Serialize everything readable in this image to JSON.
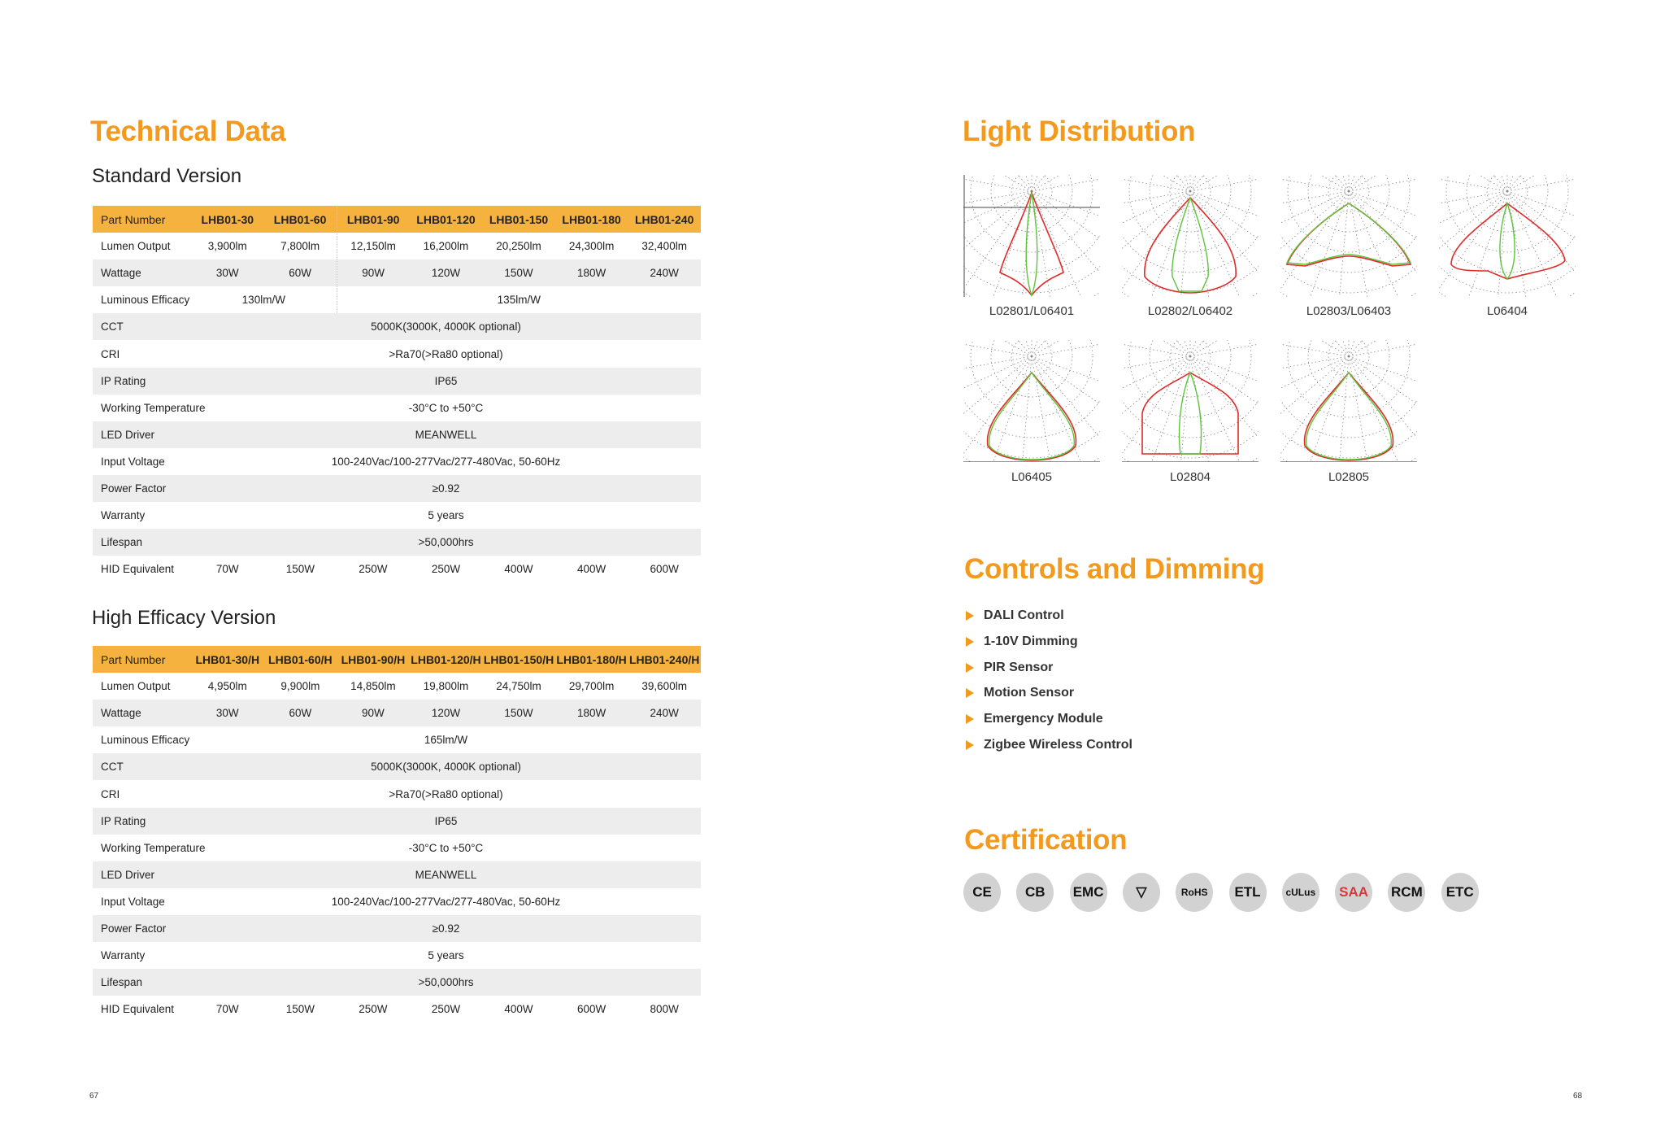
{
  "left": {
    "title": "Technical Data",
    "standard": {
      "subtitle": "Standard Version",
      "rows": [
        {
          "label": "Part Number",
          "cells": [
            {
              "v": "LHB01-30"
            },
            {
              "v": "LHB01-60"
            },
            {
              "v": "LHB01-90"
            },
            {
              "v": "LHB01-120"
            },
            {
              "v": "LHB01-150"
            },
            {
              "v": "LHB01-180"
            },
            {
              "v": "LHB01-240"
            }
          ]
        },
        {
          "label": "Lumen Output",
          "cells": [
            {
              "v": "3,900lm"
            },
            {
              "v": "7,800lm"
            },
            {
              "v": "12,150lm"
            },
            {
              "v": "16,200lm"
            },
            {
              "v": "20,250lm"
            },
            {
              "v": "24,300lm"
            },
            {
              "v": "32,400lm"
            }
          ]
        },
        {
          "label": "Wattage",
          "cells": [
            {
              "v": "30W"
            },
            {
              "v": "60W"
            },
            {
              "v": "90W"
            },
            {
              "v": "120W"
            },
            {
              "v": "150W"
            },
            {
              "v": "180W"
            },
            {
              "v": "240W"
            }
          ]
        },
        {
          "label": "Luminous Efficacy",
          "cells": [
            {
              "v": "130lm/W",
              "span": 2
            },
            {
              "v": "135lm/W",
              "span": 5
            }
          ]
        },
        {
          "label": "CCT",
          "cells": [
            {
              "v": "5000K(3000K, 4000K optional)",
              "span": 7
            }
          ]
        },
        {
          "label": "CRI",
          "cells": [
            {
              "v": ">Ra70(>Ra80 optional)",
              "span": 7
            }
          ]
        },
        {
          "label": "IP Rating",
          "cells": [
            {
              "v": "IP65",
              "span": 7
            }
          ]
        },
        {
          "label": "Working Temperature",
          "cells": [
            {
              "v": "-30°C to +50°C",
              "span": 7
            }
          ]
        },
        {
          "label": "LED Driver",
          "cells": [
            {
              "v": "MEANWELL",
              "span": 7
            }
          ]
        },
        {
          "label": "Input Voltage",
          "cells": [
            {
              "v": "100-240Vac/100-277Vac/277-480Vac, 50-60Hz",
              "span": 7
            }
          ]
        },
        {
          "label": "Power Factor",
          "cells": [
            {
              "v": "≥0.92",
              "span": 7
            }
          ]
        },
        {
          "label": "Warranty",
          "cells": [
            {
              "v": "5 years",
              "span": 7
            }
          ]
        },
        {
          "label": "Lifespan",
          "cells": [
            {
              "v": ">50,000hrs",
              "span": 7
            }
          ]
        },
        {
          "label": "HID Equivalent",
          "cells": [
            {
              "v": "70W"
            },
            {
              "v": "150W"
            },
            {
              "v": "250W"
            },
            {
              "v": "250W"
            },
            {
              "v": "400W"
            },
            {
              "v": "400W"
            },
            {
              "v": "600W"
            }
          ]
        }
      ]
    },
    "high_efficacy": {
      "subtitle": "High Efficacy Version",
      "rows": [
        {
          "label": "Part Number",
          "cells": [
            {
              "v": "LHB01-30/H"
            },
            {
              "v": "LHB01-60/H"
            },
            {
              "v": "LHB01-90/H"
            },
            {
              "v": "LHB01-120/H"
            },
            {
              "v": "LHB01-150/H"
            },
            {
              "v": "LHB01-180/H"
            },
            {
              "v": "LHB01-240/H"
            }
          ]
        },
        {
          "label": "Lumen Output",
          "cells": [
            {
              "v": "4,950lm"
            },
            {
              "v": "9,900lm"
            },
            {
              "v": "14,850lm"
            },
            {
              "v": "19,800lm"
            },
            {
              "v": "24,750lm"
            },
            {
              "v": "29,700lm"
            },
            {
              "v": "39,600lm"
            }
          ]
        },
        {
          "label": "Wattage",
          "cells": [
            {
              "v": "30W"
            },
            {
              "v": "60W"
            },
            {
              "v": "90W"
            },
            {
              "v": "120W"
            },
            {
              "v": "150W"
            },
            {
              "v": "180W"
            },
            {
              "v": "240W"
            }
          ]
        },
        {
          "label": "Luminous Efficacy",
          "cells": [
            {
              "v": "165lm/W",
              "span": 7
            }
          ]
        },
        {
          "label": "CCT",
          "cells": [
            {
              "v": "5000K(3000K, 4000K optional)",
              "span": 7
            }
          ]
        },
        {
          "label": "CRI",
          "cells": [
            {
              "v": ">Ra70(>Ra80 optional)",
              "span": 7
            }
          ]
        },
        {
          "label": "IP Rating",
          "cells": [
            {
              "v": "IP65",
              "span": 7
            }
          ]
        },
        {
          "label": "Working Temperature",
          "cells": [
            {
              "v": "-30°C to +50°C",
              "span": 7
            }
          ]
        },
        {
          "label": "LED Driver",
          "cells": [
            {
              "v": "MEANWELL",
              "span": 7
            }
          ]
        },
        {
          "label": "Input Voltage",
          "cells": [
            {
              "v": "100-240Vac/100-277Vac/277-480Vac, 50-60Hz",
              "span": 7
            }
          ]
        },
        {
          "label": "Power Factor",
          "cells": [
            {
              "v": "≥0.92",
              "span": 7
            }
          ]
        },
        {
          "label": "Warranty",
          "cells": [
            {
              "v": "5 years",
              "span": 7
            }
          ]
        },
        {
          "label": "Lifespan",
          "cells": [
            {
              "v": ">50,000hrs",
              "span": 7
            }
          ]
        },
        {
          "label": "HID Equivalent",
          "cells": [
            {
              "v": "70W"
            },
            {
              "v": "150W"
            },
            {
              "v": "250W"
            },
            {
              "v": "250W"
            },
            {
              "v": "400W"
            },
            {
              "v": "600W"
            },
            {
              "v": "800W"
            }
          ]
        }
      ]
    },
    "page_number": "67"
  },
  "right": {
    "light_distribution": {
      "title": "Light Distribution",
      "diagrams": [
        {
          "label": "L02801/L06401",
          "shape": "narrow"
        },
        {
          "label": "L02802/L06402",
          "shape": "medium"
        },
        {
          "label": "L02803/L06403",
          "shape": "wide"
        },
        {
          "label": "L06404",
          "shape": "asym"
        },
        {
          "label": "L06405",
          "shape": "drop"
        },
        {
          "label": "L02804",
          "shape": "box"
        },
        {
          "label": "L02805",
          "shape": "drop"
        }
      ]
    },
    "controls": {
      "title": "Controls and Dimming",
      "items": [
        "DALI Control",
        "1-10V Dimming",
        "PIR Sensor",
        "Motion Sensor",
        "Emergency Module",
        "Zigbee Wireless Control"
      ]
    },
    "certification": {
      "title": "Certification",
      "badges": [
        {
          "text": "CE",
          "icon": "ce-mark-icon"
        },
        {
          "text": "CB",
          "icon": "cb-scheme-icon"
        },
        {
          "text": "EMC",
          "icon": "emc-mark-icon"
        },
        {
          "text": "▽",
          "icon": "enec-triangle-icon"
        },
        {
          "text": "RoHS",
          "icon": "rohs-icon"
        },
        {
          "text": "ETL",
          "icon": "etl-listed-icon"
        },
        {
          "text": "cULus",
          "icon": "ul-listed-icon"
        },
        {
          "text": "SAA",
          "icon": "saa-icon"
        },
        {
          "text": "RCM",
          "icon": "rcm-icon"
        },
        {
          "text": "ETC",
          "icon": "etc-icon"
        }
      ]
    },
    "page_number": "68"
  },
  "colors": {
    "accent": "#f39a1e",
    "table_header": "#f6b23e",
    "row_alt": "#ededed",
    "curve_red": "#e02a2a",
    "curve_green": "#5cc43a"
  }
}
